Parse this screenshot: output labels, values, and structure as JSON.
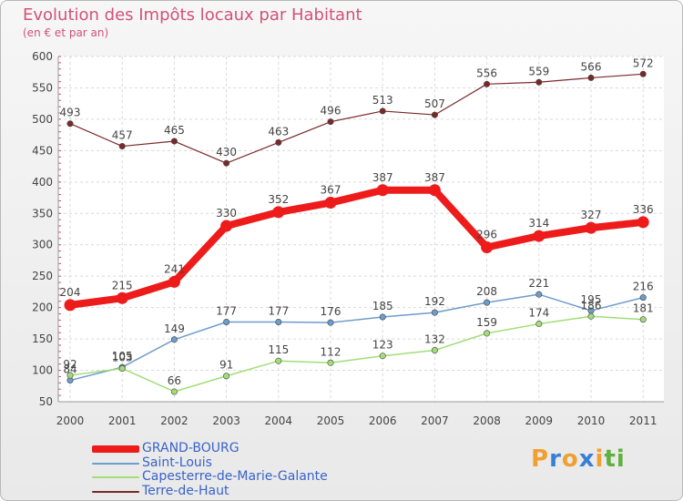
{
  "title": "Evolution des Impôts locaux par Habitant",
  "subtitle": "(en € et par an)",
  "logo": {
    "letters": [
      {
        "char": "P",
        "color": "#f0a030"
      },
      {
        "char": "r",
        "color": "#3a7fd5"
      },
      {
        "char": "o",
        "color": "#f0a030"
      },
      {
        "char": "x",
        "color": "#3a7fd5"
      },
      {
        "char": "i",
        "color": "#f0a030"
      },
      {
        "char": "t",
        "color": "#60b040"
      },
      {
        "char": "i",
        "color": "#60b040"
      }
    ]
  },
  "chart_data": {
    "type": "line",
    "x": [
      "2000",
      "2001",
      "2002",
      "2003",
      "2004",
      "2005",
      "2006",
      "2007",
      "2008",
      "2009",
      "2010",
      "2011"
    ],
    "ylim": [
      50,
      600
    ],
    "yticks": [
      50,
      100,
      150,
      200,
      250,
      300,
      350,
      400,
      450,
      500,
      550,
      600
    ],
    "grid": true,
    "legend": "bottom-left",
    "series": [
      {
        "name": "GRAND-BOURG",
        "color": "#ee1b1b",
        "width": 8,
        "marker": 6.5,
        "values": [
          204,
          215,
          241,
          330,
          352,
          367,
          387,
          387,
          296,
          314,
          327,
          336
        ]
      },
      {
        "name": "Saint-Louis",
        "color": "#6e9ccc",
        "width": 1.5,
        "marker": 3.2,
        "values": [
          84,
          105,
          149,
          177,
          177,
          176,
          185,
          192,
          208,
          221,
          195,
          216
        ]
      },
      {
        "name": "Capesterre-de-Marie-Galante",
        "color": "#a2dd78",
        "width": 1.5,
        "marker": 3.2,
        "values": [
          92,
          103,
          66,
          91,
          115,
          112,
          123,
          132,
          159,
          174,
          186,
          181
        ]
      },
      {
        "name": "Terre-de-Haut",
        "color": "#7a2828",
        "width": 1.2,
        "marker": 3.2,
        "values": [
          493,
          457,
          465,
          430,
          463,
          496,
          513,
          507,
          556,
          559,
          566,
          572
        ]
      }
    ]
  }
}
